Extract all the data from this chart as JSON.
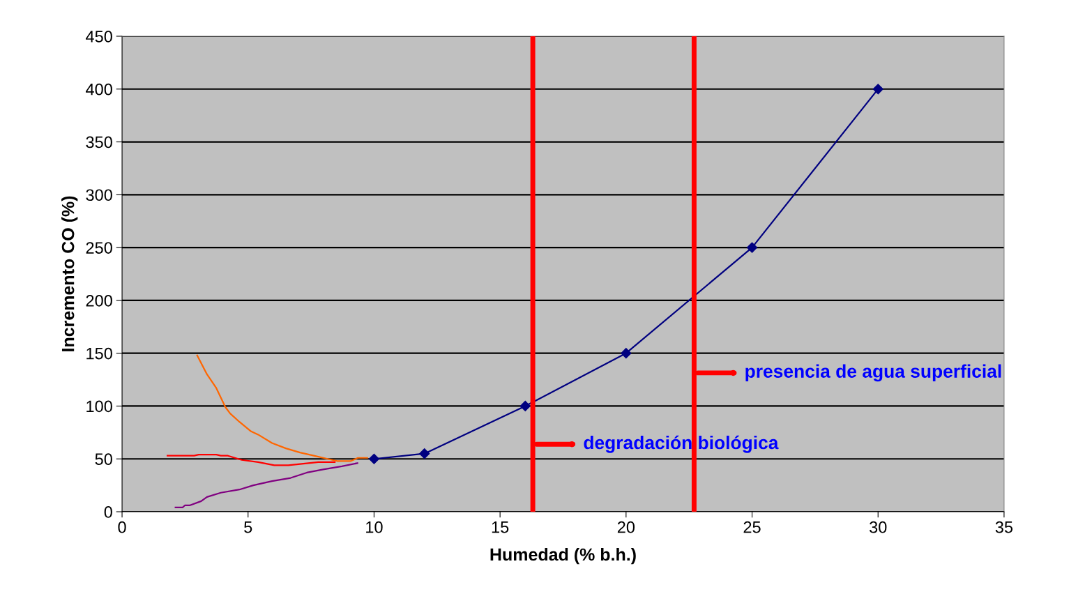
{
  "chart_data": {
    "type": "line",
    "xlabel": "Humedad (% b.h.)",
    "ylabel": "Incremento CO (%)",
    "xlim": [
      0,
      35
    ],
    "xticks": [
      0,
      5,
      10,
      15,
      20,
      25,
      30,
      35
    ],
    "ylim": [
      0,
      450
    ],
    "yticks": [
      0,
      50,
      100,
      150,
      200,
      250,
      300,
      350,
      400,
      450
    ],
    "grid": "y",
    "legend": false,
    "series": [
      {
        "color": "#000080",
        "marker": "diamond",
        "x": [
          10,
          12,
          16,
          20,
          25,
          30
        ],
        "values": [
          50,
          55,
          100,
          150,
          250,
          400
        ]
      },
      {
        "color": "#ff6600",
        "marker": "none",
        "x": [
          2.98,
          3.37,
          3.74,
          4.1,
          4.29,
          4.66,
          5.12,
          5.4,
          5.95,
          6.5,
          7.06,
          7.61,
          8.16,
          8.53,
          9.08,
          9.36,
          9.73
        ],
        "values": [
          148,
          130,
          117,
          99,
          93,
          85,
          76,
          73,
          65,
          60,
          56,
          53,
          50,
          48,
          48,
          51,
          51
        ]
      },
      {
        "color": "#ff0000",
        "marker": "none",
        "x": [
          1.8,
          2.86,
          3.04,
          3.74,
          3.92,
          4.2,
          4.75,
          5.4,
          6.04,
          6.6,
          7.79,
          8.44
        ],
        "values": [
          53,
          53,
          54,
          54,
          53,
          53,
          49,
          47,
          44,
          44,
          47,
          47
        ]
      },
      {
        "color": "#800080",
        "marker": "none",
        "x": [
          2.12,
          2.4,
          2.49,
          2.68,
          3.14,
          3.37,
          3.92,
          4.66,
          5.21,
          5.95,
          6.69,
          7.33,
          7.98,
          8.72,
          9.34
        ],
        "values": [
          4,
          4,
          6,
          6,
          10,
          14,
          18,
          21,
          25,
          29,
          32,
          37,
          40,
          43,
          46
        ]
      }
    ],
    "ref_lines": [
      {
        "axis": "x",
        "value": 16.3,
        "color": "#ff0000",
        "label": "degradación biológica"
      },
      {
        "axis": "x",
        "value": 22.7,
        "color": "#ff0000",
        "label": "presencia de agua superficial"
      }
    ]
  }
}
